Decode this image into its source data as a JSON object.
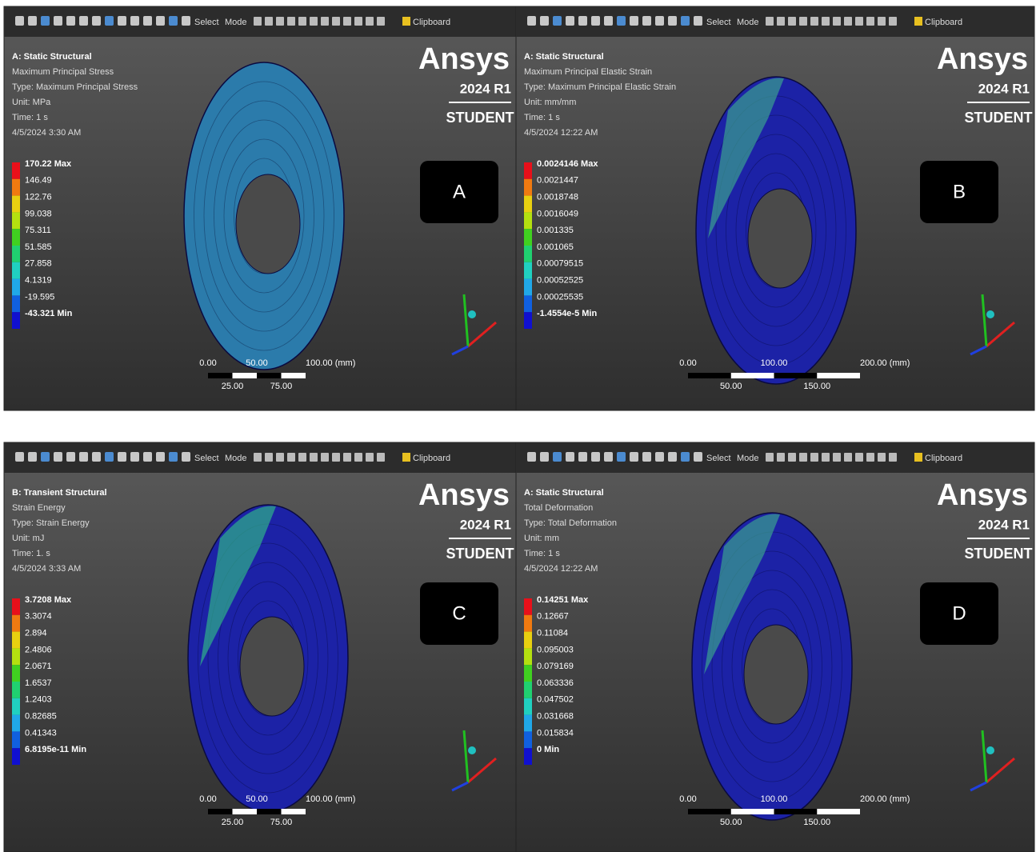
{
  "toolbar": {
    "select": "Select",
    "mode": "Mode",
    "clipboard": "Clipboard"
  },
  "logo": {
    "brand": "Ansys",
    "version": "2024 R1",
    "edition": "STUDENT"
  },
  "panels": [
    {
      "label": "A",
      "info": [
        "A: Static Structural",
        "Maximum Principal Stress",
        "Type: Maximum Principal Stress",
        "Unit: MPa",
        "Time: 1 s",
        "4/5/2024 3:30 AM"
      ],
      "legend": [
        "170.22 Max",
        "146.49",
        "122.76",
        "99.038",
        "75.311",
        "51.585",
        "27.858",
        "4.1319",
        "-19.595",
        "-43.321 Min"
      ],
      "scale_top": [
        "0.00",
        "50.00",
        "100.00 (mm)"
      ],
      "scale_bottom": [
        "25.00",
        "75.00"
      ]
    },
    {
      "label": "B",
      "info": [
        "A: Static Structural",
        "Maximum Principal Elastic Strain",
        "Type: Maximum Principal Elastic Strain",
        "Unit: mm/mm",
        "Time: 1 s",
        "4/5/2024 12:22 AM"
      ],
      "legend": [
        "0.0024146 Max",
        "0.0021447",
        "0.0018748",
        "0.0016049",
        "0.001335",
        "0.001065",
        "0.00079515",
        "0.00052525",
        "0.00025535",
        "-1.4554e-5 Min"
      ],
      "scale_top": [
        "0.00",
        "100.00",
        "200.00 (mm)"
      ],
      "scale_bottom": [
        "50.00",
        "150.00"
      ]
    },
    {
      "label": "C",
      "info": [
        "B: Transient Structural",
        "Strain Energy",
        "Type: Strain Energy",
        "Unit: mJ",
        "Time: 1. s",
        "4/5/2024 3:33 AM"
      ],
      "legend": [
        "3.7208 Max",
        "3.3074",
        "2.894",
        "2.4806",
        "2.0671",
        "1.6537",
        "1.2403",
        "0.82685",
        "0.41343",
        "6.8195e-11 Min"
      ],
      "scale_top": [
        "0.00",
        "50.00",
        "100.00 (mm)"
      ],
      "scale_bottom": [
        "25.00",
        "75.00"
      ]
    },
    {
      "label": "D",
      "info": [
        "A: Static Structural",
        "Total Deformation",
        "Type: Total Deformation",
        "Unit: mm",
        "Time: 1 s",
        "4/5/2024 12:22 AM"
      ],
      "legend": [
        "0.14251 Max",
        "0.12667",
        "0.11084",
        "0.095003",
        "0.079169",
        "0.063336",
        "0.047502",
        "0.031668",
        "0.015834",
        "0 Min"
      ],
      "scale_top": [
        "0.00",
        "100.00",
        "200.00 (mm)"
      ],
      "scale_bottom": [
        "50.00",
        "150.00"
      ]
    }
  ]
}
